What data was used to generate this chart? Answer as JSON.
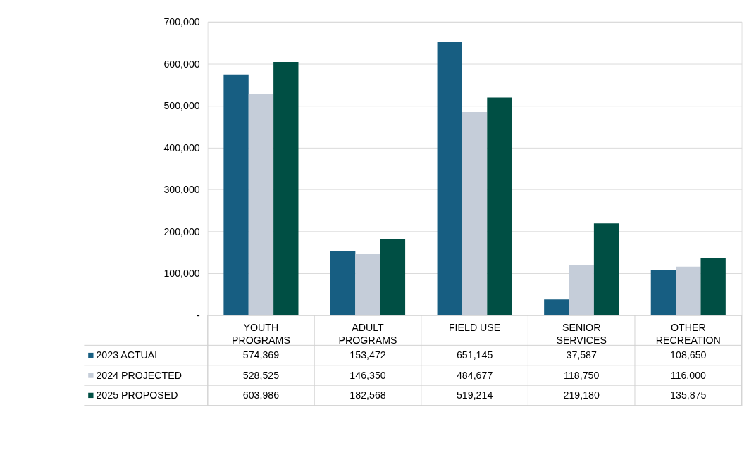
{
  "chart_data": {
    "type": "bar",
    "categories": [
      "YOUTH PROGRAMS",
      "ADULT PROGRAMS",
      "FIELD USE",
      "SENIOR SERVICES",
      "OTHER RECREATION"
    ],
    "series": [
      {
        "name": "2023 ACTUAL",
        "color": "#175e82",
        "values": [
          574369,
          153472,
          651145,
          37587,
          108650
        ],
        "value_labels": [
          "574,369",
          "153,472",
          "651,145",
          "37,587",
          "108,650"
        ]
      },
      {
        "name": "2024 PROJECTED",
        "color": "#c5cdd9",
        "values": [
          528525,
          146350,
          484677,
          118750,
          116000
        ],
        "value_labels": [
          "528,525",
          "146,350",
          "484,677",
          "118,750",
          "116,000"
        ]
      },
      {
        "name": "2025 PROPOSED",
        "color": "#004f44",
        "values": [
          603986,
          182568,
          519214,
          219180,
          135875
        ],
        "value_labels": [
          "603,986",
          "182,568",
          "519,214",
          "219,180",
          "135,875"
        ]
      }
    ],
    "ylim": [
      0,
      700000
    ],
    "yticks": [
      {
        "value": 0,
        "label": "-"
      },
      {
        "value": 100000,
        "label": "100,000"
      },
      {
        "value": 200000,
        "label": "200,000"
      },
      {
        "value": 300000,
        "label": "300,000"
      },
      {
        "value": 400000,
        "label": "400,000"
      },
      {
        "value": 500000,
        "label": "500,000"
      },
      {
        "value": 600000,
        "label": "600,000"
      },
      {
        "value": 700000,
        "label": "700,000"
      }
    ],
    "grid": "y",
    "legend": "bottom"
  }
}
